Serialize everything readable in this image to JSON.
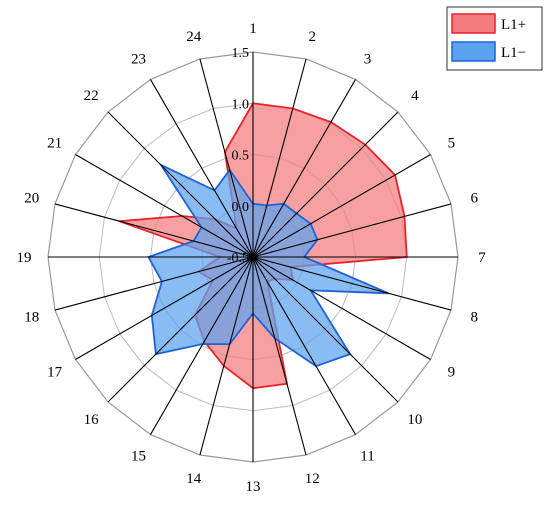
{
  "chart_data": {
    "type": "radar",
    "categories": [
      "1",
      "2",
      "3",
      "4",
      "5",
      "6",
      "7",
      "8",
      "9",
      "10",
      "11",
      "12",
      "13",
      "14",
      "15",
      "16",
      "17",
      "18",
      "19",
      "20",
      "21",
      "22",
      "23",
      "24"
    ],
    "rlim": [
      -0.5,
      1.5
    ],
    "rticks": [
      "-0.5",
      "0.0",
      "0.5",
      "1.0",
      "1.5"
    ],
    "rtick_values": [
      -0.5,
      0.0,
      0.5,
      1.0,
      1.5
    ],
    "grid": true,
    "legend_position": "top-right",
    "series": [
      {
        "name": "L1+",
        "values": [
          1.0,
          1.0,
          1.02,
          1.05,
          1.1,
          1.03,
          1.0,
          -0.12,
          -0.05,
          -0.2,
          -0.22,
          0.78,
          0.78,
          0.6,
          0.45,
          0.3,
          -0.05,
          0.05,
          -0.18,
          0.85,
          0.3,
          0.02,
          -0.18,
          0.56
        ],
        "fill": "#f47b7e",
        "stroke": "#e8222b"
      },
      {
        "name": "L1−",
        "values": [
          0.02,
          0.02,
          0.1,
          0.1,
          0.15,
          0.15,
          0.0,
          0.87,
          0.15,
          0.84,
          0.73,
          0.32,
          0.05,
          0.38,
          0.48,
          0.84,
          0.64,
          0.42,
          0.52,
          0.1,
          0.08,
          0.77,
          0.25,
          0.38
        ],
        "fill": "#5aa2ee",
        "stroke": "#1d63d6"
      }
    ]
  }
}
